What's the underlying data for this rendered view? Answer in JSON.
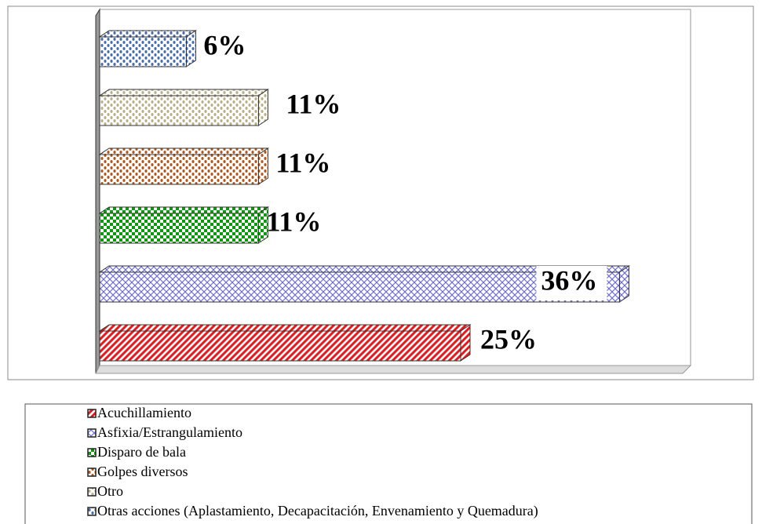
{
  "chart_data": {
    "type": "bar",
    "orientation": "horizontal",
    "categories": [
      "Acuchillamiento",
      "Asfixia/Estrangulamiento",
      "Disparo de bala",
      "Golpes diversos",
      "Otro",
      "Otras acciones (Aplastamiento, Decapacitación, Envenamiento y Quemadura)"
    ],
    "values": [
      25,
      36,
      11,
      11,
      11,
      6
    ],
    "value_labels": [
      "25%",
      "36%",
      "11%",
      "11%",
      "11%",
      "6%"
    ],
    "colors": [
      "#e8191c",
      "#6f6fd8",
      "#0a9a0a",
      "#b4581a",
      "#b9b08a",
      "#4a6fae"
    ]
  }
}
